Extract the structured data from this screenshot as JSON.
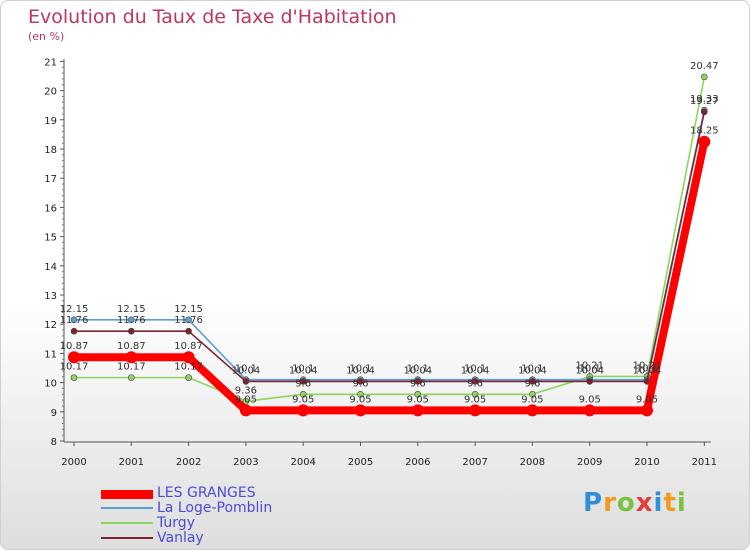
{
  "chart_data": {
    "type": "line",
    "title": "Evolution du Taux de Taxe d'Habitation",
    "subtitle": "(en %)",
    "xlabel": "",
    "ylabel": "",
    "x": [
      "2000",
      "2001",
      "2002",
      "2003",
      "2004",
      "2005",
      "2006",
      "2007",
      "2008",
      "2009",
      "2010",
      "2011"
    ],
    "yticks": [
      "8",
      "9",
      "10",
      "11",
      "12",
      "13",
      "14",
      "15",
      "16",
      "17",
      "18",
      "19",
      "20",
      "21"
    ],
    "ylim": [
      8,
      21
    ],
    "grid": false,
    "legend_position": "bottom-left",
    "series": [
      {
        "name": "LES GRANGES",
        "color": "#ff0000",
        "values": [
          10.87,
          10.87,
          10.87,
          9.05,
          9.05,
          9.05,
          9.05,
          9.05,
          9.05,
          9.05,
          9.05,
          18.25
        ],
        "labels": [
          "10.87",
          "10.87",
          "10.87",
          "9.05",
          "9.05",
          "9.05",
          "9.05",
          "9.05",
          "9.05",
          "9.05",
          "9.05",
          "18.25"
        ]
      },
      {
        "name": "La Loge-Pomblin",
        "color": "#5c9fd6",
        "values": [
          12.15,
          12.15,
          12.15,
          10.1,
          10.1,
          10.1,
          10.1,
          10.1,
          10.1,
          10.1,
          10.1,
          19.33
        ],
        "labels": [
          "12.15",
          "12.15",
          "12.15",
          "10.1",
          "10.1",
          "10.1",
          "10.1",
          "10.1",
          "10.1",
          "10.1",
          "10.1",
          "19.33"
        ]
      },
      {
        "name": "Turgy",
        "color": "#8cd65c",
        "values": [
          10.17,
          10.17,
          10.17,
          9.36,
          9.6,
          9.6,
          9.6,
          9.6,
          9.6,
          10.21,
          10.21,
          20.47
        ],
        "labels": [
          "10.17",
          "10.17",
          "10.17",
          "9.36",
          "9.6",
          "9.6",
          "9.6",
          "9.6",
          "9.6",
          "10.21",
          "10.21",
          "20.47"
        ]
      },
      {
        "name": "Vanlay",
        "color": "#7b2430",
        "values": [
          11.76,
          11.76,
          11.76,
          10.04,
          10.04,
          10.04,
          10.04,
          10.04,
          10.04,
          10.04,
          10.04,
          19.27
        ],
        "labels": [
          "11.76",
          "11.76",
          "11.76",
          "10.04",
          "10.04",
          "10.04",
          "10.04",
          "10.04",
          "10.04",
          "10.04",
          "10.04",
          "19.27"
        ]
      }
    ]
  },
  "brand": {
    "letters": [
      "P",
      "r",
      "o",
      "x",
      "i",
      "t",
      "i"
    ],
    "colors": [
      "#2f8fd8",
      "#f39a1b",
      "#7cc242",
      "#e23c3c",
      "#2f8fd8",
      "#f39a1b",
      "#7cc242"
    ]
  }
}
